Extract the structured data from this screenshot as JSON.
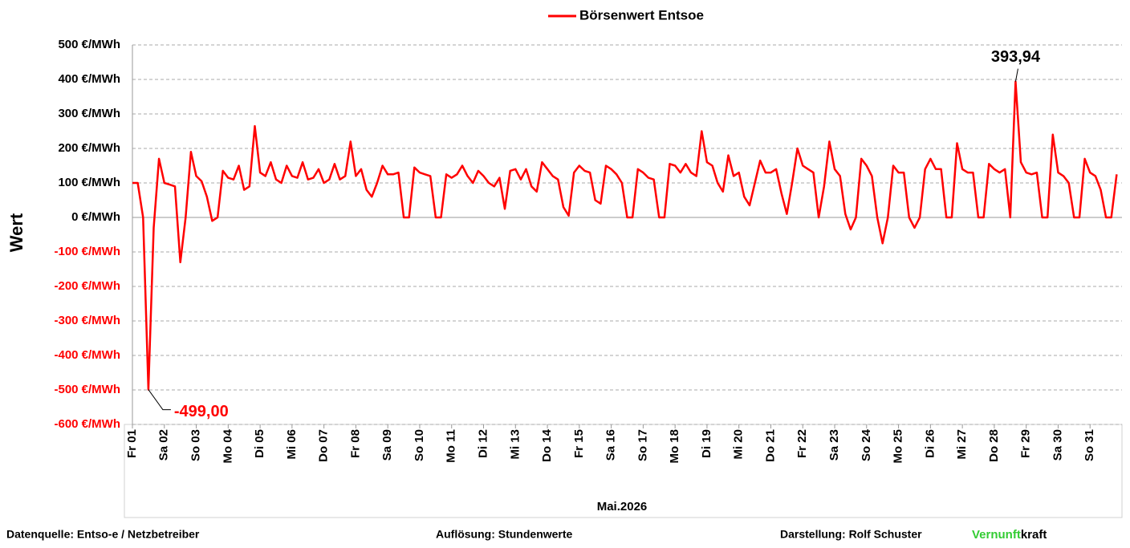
{
  "chart_data": {
    "type": "line",
    "xlabel": "Mai.2026",
    "ylabel": "Wert",
    "ylim": [
      -600,
      500
    ],
    "yticks": [
      {
        "value": 500,
        "label": "500 €/MWh"
      },
      {
        "value": 400,
        "label": "400 €/MWh"
      },
      {
        "value": 300,
        "label": "300 €/MWh"
      },
      {
        "value": 200,
        "label": "200 €/MWh"
      },
      {
        "value": 100,
        "label": "100 €/MWh"
      },
      {
        "value": 0,
        "label": "0 €/MWh"
      },
      {
        "value": -100,
        "label": "-100 €/MWh"
      },
      {
        "value": -200,
        "label": "-200 €/MWh"
      },
      {
        "value": -300,
        "label": "-300 €/MWh"
      },
      {
        "value": -400,
        "label": "-400 €/MWh"
      },
      {
        "value": -500,
        "label": "-500 €/MWh"
      },
      {
        "value": -600,
        "label": "-600 €/MWh"
      }
    ],
    "negative_tick_color": "#ff0000",
    "grid": true,
    "legend": "top",
    "categories": [
      "Fr 01",
      null,
      null,
      null,
      null,
      null,
      "Sa 02",
      null,
      null,
      null,
      null,
      null,
      "So 03",
      null,
      null,
      null,
      null,
      null,
      "Mo 04",
      null,
      null,
      null,
      null,
      null,
      "Di 05",
      null,
      null,
      null,
      null,
      null,
      "Mi 06",
      null,
      null,
      null,
      null,
      null,
      "Do 07",
      null,
      null,
      null,
      null,
      null,
      "Fr 08",
      null,
      null,
      null,
      null,
      null,
      "Sa 09",
      null,
      null,
      null,
      null,
      null,
      "So 10",
      null,
      null,
      null,
      null,
      null,
      "Mo 11",
      null,
      null,
      null,
      null,
      null,
      "Di 12",
      null,
      null,
      null,
      null,
      null,
      "Mi 13",
      null,
      null,
      null,
      null,
      null,
      "Do 14",
      null,
      null,
      null,
      null,
      null,
      "Fr 15",
      null,
      null,
      null,
      null,
      null,
      "Sa 16",
      null,
      null,
      null,
      null,
      null,
      "So 17",
      null,
      null,
      null,
      null,
      null,
      "Mo 18",
      null,
      null,
      null,
      null,
      null,
      "Di 19",
      null,
      null,
      null,
      null,
      null,
      "Mi 20",
      null,
      null,
      null,
      null,
      null,
      "Do 21",
      null,
      null,
      null,
      null,
      null,
      "Fr 22",
      null,
      null,
      null,
      null,
      null,
      "Sa 23",
      null,
      null,
      null,
      null,
      null,
      "So 24",
      null,
      null,
      null,
      null,
      null,
      "Mo 25",
      null,
      null,
      null,
      null,
      null,
      "Di 26",
      null,
      null,
      null,
      null,
      null,
      "Mi 27",
      null,
      null,
      null,
      null,
      null,
      "Do 28",
      null,
      null,
      null,
      null,
      null,
      "Fr 29",
      null,
      null,
      null,
      null,
      null,
      "Sa 30",
      null,
      null,
      null,
      null,
      null,
      "So 31",
      null,
      null,
      null,
      null,
      null
    ],
    "series": [
      {
        "name": "Börsenwert Entsoe",
        "color": "#ff0000",
        "values": [
          100,
          100,
          0,
          -499,
          -30,
          170,
          100,
          95,
          90,
          -130,
          0,
          190,
          120,
          105,
          60,
          -10,
          0,
          135,
          115,
          110,
          150,
          80,
          90,
          265,
          130,
          120,
          160,
          110,
          100,
          150,
          120,
          115,
          160,
          110,
          115,
          140,
          100,
          110,
          155,
          110,
          120,
          220,
          120,
          140,
          80,
          60,
          100,
          150,
          125,
          125,
          130,
          0,
          0,
          145,
          130,
          125,
          120,
          0,
          0,
          125,
          115,
          125,
          150,
          120,
          100,
          135,
          120,
          100,
          90,
          115,
          25,
          135,
          140,
          110,
          140,
          90,
          75,
          160,
          140,
          120,
          110,
          30,
          5,
          130,
          150,
          135,
          130,
          50,
          40,
          150,
          140,
          125,
          100,
          0,
          0,
          140,
          130,
          115,
          110,
          0,
          0,
          155,
          150,
          130,
          155,
          130,
          120,
          250,
          160,
          150,
          100,
          75,
          180,
          120,
          130,
          60,
          35,
          100,
          165,
          130,
          130,
          140,
          70,
          10,
          100,
          200,
          150,
          140,
          130,
          0,
          90,
          220,
          140,
          120,
          10,
          -35,
          0,
          170,
          150,
          120,
          0,
          -75,
          0,
          150,
          130,
          130,
          0,
          -30,
          0,
          140,
          170,
          140,
          140,
          0,
          0,
          215,
          140,
          130,
          130,
          0,
          0,
          155,
          140,
          130,
          140,
          0,
          393.94,
          160,
          130,
          125,
          130,
          0,
          0,
          240,
          130,
          120,
          100,
          0,
          0,
          170,
          130,
          120,
          80,
          0,
          0,
          125
        ]
      }
    ],
    "annotations": [
      {
        "value": -499,
        "label": "-499,00",
        "color": "#ff0000"
      },
      {
        "value": 393.94,
        "label": "393,94",
        "color": "#000000"
      }
    ]
  },
  "footer": {
    "source": "Datenquelle:  Entso-e  / Netzbetreiber",
    "resolution": "Auflösung: Stundenwerte",
    "author": "Darstellung:  Rolf Schuster",
    "brand_part1": "Vernunft",
    "brand_part2": "kraft"
  }
}
